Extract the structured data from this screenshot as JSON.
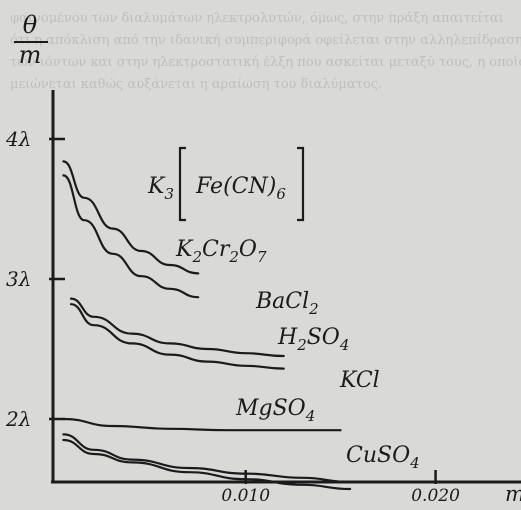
{
  "page": {
    "background_color": "#d9d9d7",
    "ink_color": "#1b1b1b",
    "bleed_text_color": "#8e8e8b",
    "bleed_through_text": [
      "φαινομένου των διαλυμάτων ηλεκτρολυτών, όμως, στην πράξη απαιτείται",
      "ότι η απόκλιση από την ιδανική συμπεριφορά οφείλεται στην αλληλεπίδραση",
      "των ιόντων και στην ηλεκτροστατική έλξη που ασκείται μεταξύ τους, η οποία",
      "μειώνεται καθώς αυξάνεται η αραίωση του διαλύματος."
    ]
  },
  "chart_data": {
    "type": "line",
    "title": "",
    "ylabel": "θ/m",
    "xlabel": "m",
    "y_axis_unit_symbol": "λ",
    "ylim": [
      1.55,
      4.35
    ],
    "xlim": [
      -0.00015,
      0.0245
    ],
    "y_ticks": [
      {
        "value": 2,
        "label": "2λ"
      },
      {
        "value": 3,
        "label": "3λ"
      },
      {
        "value": 4,
        "label": "4λ"
      }
    ],
    "x_ticks": [
      {
        "value": 0.01,
        "label": "0.010"
      },
      {
        "value": 0.02,
        "label": "0.020"
      }
    ],
    "grid": false,
    "legend": "none (series labelled directly on curves)",
    "series": [
      {
        "name": "K3[Fe(CN)6]",
        "label_main": "K",
        "label_parts": [
          "3",
          "[Fe(CN)",
          "6",
          "]"
        ],
        "x": [
          0.0004,
          0.0015,
          0.003,
          0.0045,
          0.006,
          0.0075
        ],
        "y": [
          3.84,
          3.58,
          3.36,
          3.2,
          3.1,
          3.04
        ]
      },
      {
        "name": "K2Cr2O7",
        "x": [
          0.0004,
          0.0015,
          0.003,
          0.0045,
          0.006,
          0.0075
        ],
        "y": [
          3.74,
          3.42,
          3.18,
          3.02,
          2.93,
          2.87
        ]
      },
      {
        "name": "BaCl2",
        "x": [
          0.0008,
          0.002,
          0.004,
          0.006,
          0.008,
          0.01,
          0.012
        ],
        "y": [
          2.86,
          2.73,
          2.61,
          2.54,
          2.5,
          2.47,
          2.45
        ]
      },
      {
        "name": "H2SO4",
        "x": [
          0.0008,
          0.002,
          0.004,
          0.006,
          0.008,
          0.01,
          0.012
        ],
        "y": [
          2.82,
          2.67,
          2.54,
          2.46,
          2.41,
          2.38,
          2.36
        ]
      },
      {
        "name": "KCl",
        "x": [
          0.0004,
          0.003,
          0.006,
          0.009,
          0.012,
          0.015
        ],
        "y": [
          2.0,
          1.95,
          1.93,
          1.92,
          1.92,
          1.92
        ]
      },
      {
        "name": "MgSO4",
        "x": [
          0.0004,
          0.002,
          0.004,
          0.007,
          0.01,
          0.013,
          0.0155
        ],
        "y": [
          1.89,
          1.78,
          1.71,
          1.65,
          1.61,
          1.58,
          1.55
        ]
      },
      {
        "name": "CuSO4",
        "x": [
          0.0004,
          0.002,
          0.004,
          0.007,
          0.01,
          0.013,
          0.0155
        ],
        "y": [
          1.85,
          1.75,
          1.69,
          1.62,
          1.57,
          1.53,
          1.5
        ]
      }
    ],
    "series_labels": {
      "k3fecn6": {
        "k": "K",
        "sub1": "3",
        "bracket_text": "Fe(CN)",
        "sub2": "6"
      },
      "k2cr2o7": {
        "k": "K",
        "sub1": "2",
        "cr": "Cr",
        "sub2": "2",
        "o": "O",
        "sub3": "7"
      },
      "bacl2": {
        "main": "BaCl",
        "sub": "2"
      },
      "h2so4": {
        "h": "H",
        "sub1": "2",
        "so": "SO",
        "sub2": "4"
      },
      "kcl": {
        "main": "KCl"
      },
      "mgso4": {
        "main": "MgSO",
        "sub": "4"
      },
      "cuso4": {
        "main": "CuSO",
        "sub": "4"
      }
    }
  }
}
